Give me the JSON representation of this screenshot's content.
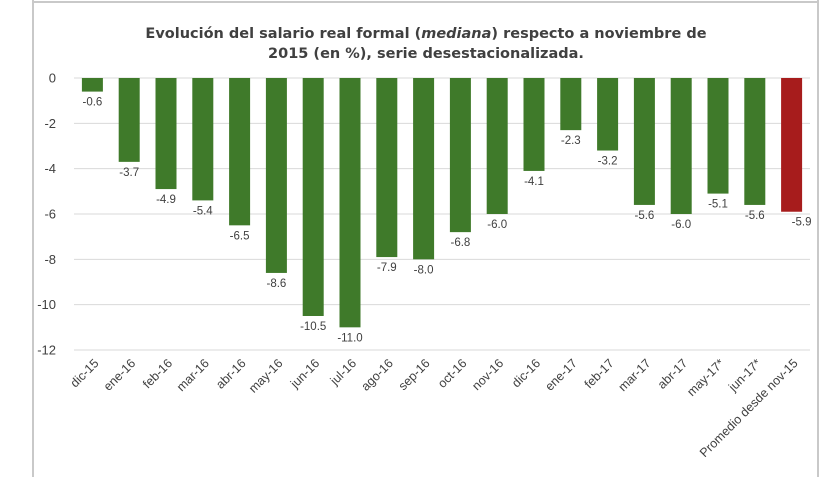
{
  "colors": {
    "bar": "#3f7a2a",
    "highlight": "#a71c1c",
    "frame": "#c9c9c9",
    "grid": "#d9d9d9",
    "text": "#404040"
  },
  "chart_data": {
    "type": "bar",
    "title_parts": [
      "Evolución del salario real formal (",
      "mediana",
      ") respecto a noviembre de"
    ],
    "title_line2": "2015 (en %), serie desestacionalizada.",
    "categories": [
      "dic-15",
      "ene-16",
      "feb-16",
      "mar-16",
      "abr-16",
      "may-16",
      "jun-16",
      "jul-16",
      "ago-16",
      "sep-16",
      "oct-16",
      "nov-16",
      "dic-16",
      "ene-17",
      "feb-17",
      "mar-17",
      "abr-17",
      "may-17*",
      "jun-17*",
      "Promedio desde nov-15"
    ],
    "values": [
      -0.6,
      -3.7,
      -4.9,
      -5.4,
      -6.5,
      -8.6,
      -10.5,
      -11.0,
      -7.9,
      -8.0,
      -6.8,
      -6.0,
      -4.1,
      -2.3,
      -3.2,
      -5.6,
      -6.0,
      -5.1,
      -5.6,
      -5.9
    ],
    "data_labels": [
      "-0.6",
      "-3.7",
      "-4.9",
      "-5.4",
      "-6.5",
      "-8.6",
      "-10.5",
      "-11.0",
      "-7.9",
      "-8.0",
      "-6.8",
      "-6.0",
      "-4.1",
      "-2.3",
      "-3.2",
      "-5.6",
      "-6.0",
      "-5.1",
      "-5.6",
      "-5.9"
    ],
    "highlight_index": 19,
    "ylim": [
      -12,
      0
    ],
    "yticks": [
      0,
      -2,
      -4,
      -6,
      -8,
      -10,
      -12
    ],
    "grid": true,
    "legend": "none"
  }
}
